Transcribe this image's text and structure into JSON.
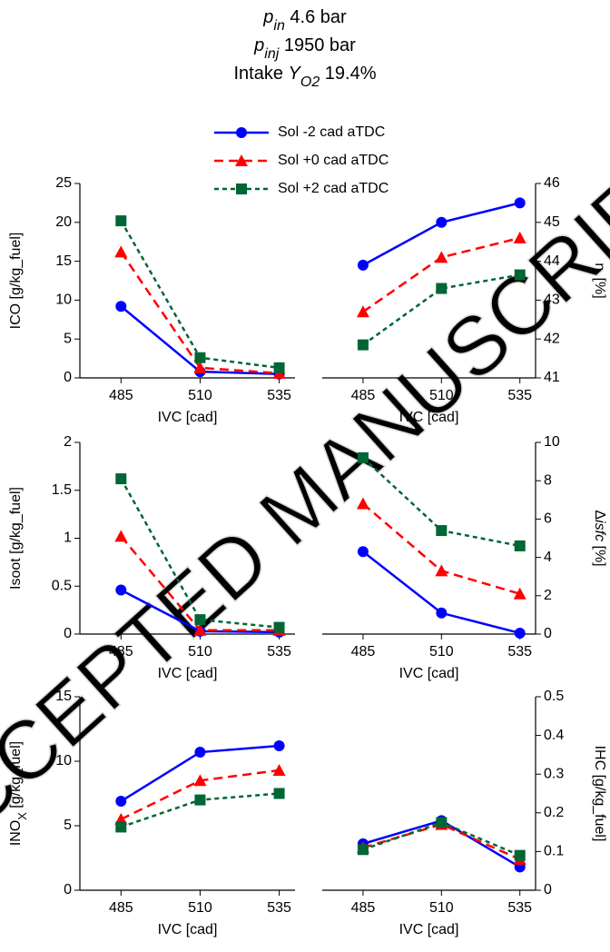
{
  "title_lines": [
    [
      {
        "text": "p",
        "style": "italic"
      },
      {
        "text": "in",
        "style": "italic-sub"
      },
      {
        "text": " 4.6 bar",
        "style": "normal"
      }
    ],
    [
      {
        "text": "p",
        "style": "italic"
      },
      {
        "text": "inj",
        "style": "italic-sub"
      },
      {
        "text": " 1950 bar",
        "style": "normal"
      }
    ],
    [
      {
        "text": "Intake ",
        "style": "normal"
      },
      {
        "text": "Y",
        "style": "italic"
      },
      {
        "text": "O2",
        "style": "italic-sub"
      },
      {
        "text": " 19.4%",
        "style": "normal"
      }
    ]
  ],
  "watermark": "ACCEPTED MANUSCRIPT",
  "chart_data": [
    {
      "type": "line",
      "x_label": "IVC [cad]",
      "y_label": [
        {
          "text": "ICO [g/kg_fuel]",
          "style": "normal"
        }
      ],
      "y_axis_side": "left",
      "x": [
        485,
        510,
        535
      ],
      "xlim": [
        472,
        540
      ],
      "xticks": [
        485,
        510,
        535
      ],
      "ylim": [
        0,
        25
      ],
      "yticks": [
        0,
        5,
        10,
        15,
        20,
        25
      ],
      "series": [
        {
          "name": "Sol -2 cad aTDC",
          "color": "#0000ff",
          "marker": "circle",
          "dash": "solid",
          "values": [
            9.2,
            0.8,
            0.5
          ]
        },
        {
          "name": "Sol +0 cad aTDC",
          "color": "#ff0000",
          "marker": "triangle",
          "dash": "dashed",
          "values": [
            16.2,
            1.3,
            0.6
          ]
        },
        {
          "name": "Sol +2 cad aTDC",
          "color": "#006633",
          "marker": "square",
          "dash": "dotted",
          "values": [
            20.2,
            2.6,
            1.3
          ]
        }
      ]
    },
    {
      "type": "line",
      "x_label": "IVC [cad]",
      "y_label": [
        {
          "text": "η",
          "style": "normal"
        },
        {
          "text": "i",
          "style": "sub"
        },
        {
          "text": " [%]",
          "style": "normal"
        }
      ],
      "y_axis_side": "right",
      "x": [
        485,
        510,
        535
      ],
      "xlim": [
        472,
        540
      ],
      "xticks": [
        485,
        510,
        535
      ],
      "ylim": [
        41,
        46
      ],
      "yticks": [
        41,
        42,
        43,
        44,
        45,
        46
      ],
      "series": [
        {
          "color": "#0000ff",
          "marker": "circle",
          "dash": "solid",
          "values": [
            43.9,
            45.0,
            45.5
          ]
        },
        {
          "color": "#ff0000",
          "marker": "triangle",
          "dash": "dashed",
          "values": [
            42.7,
            44.1,
            44.6
          ]
        },
        {
          "color": "#006633",
          "marker": "square",
          "dash": "dotted",
          "values": [
            41.85,
            43.3,
            43.65
          ]
        }
      ]
    },
    {
      "type": "line",
      "x_label": "IVC [cad]",
      "y_label": [
        {
          "text": "Isoot [g/kg_fuel]",
          "style": "normal"
        }
      ],
      "y_axis_side": "left",
      "x": [
        485,
        510,
        535
      ],
      "xlim": [
        472,
        540
      ],
      "xticks": [
        485,
        510,
        535
      ],
      "ylim": [
        0,
        2
      ],
      "yticks": [
        0,
        0.5,
        1,
        1.5,
        2
      ],
      "series": [
        {
          "color": "#0000ff",
          "marker": "circle",
          "dash": "solid",
          "values": [
            0.46,
            0.03,
            0.02
          ]
        },
        {
          "color": "#ff0000",
          "marker": "triangle",
          "dash": "dashed",
          "values": [
            1.02,
            0.04,
            0.04
          ]
        },
        {
          "color": "#006633",
          "marker": "square",
          "dash": "dotted",
          "values": [
            1.62,
            0.15,
            0.07
          ]
        }
      ]
    },
    {
      "type": "line",
      "x_label": "IVC [cad]",
      "y_label": [
        {
          "text": "Δ",
          "style": "normal"
        },
        {
          "text": "isfc",
          "style": "italic"
        },
        {
          "text": " [%]",
          "style": "normal"
        }
      ],
      "y_axis_side": "right",
      "x": [
        485,
        510,
        535
      ],
      "xlim": [
        472,
        540
      ],
      "xticks": [
        485,
        510,
        535
      ],
      "ylim": [
        0,
        10
      ],
      "yticks": [
        0,
        2,
        4,
        6,
        8,
        10
      ],
      "series": [
        {
          "color": "#0000ff",
          "marker": "circle",
          "dash": "solid",
          "values": [
            4.3,
            1.1,
            0.05
          ]
        },
        {
          "color": "#ff0000",
          "marker": "triangle",
          "dash": "dashed",
          "values": [
            6.8,
            3.3,
            2.1
          ]
        },
        {
          "color": "#006633",
          "marker": "square",
          "dash": "dotted",
          "values": [
            9.2,
            5.4,
            4.6
          ]
        }
      ]
    },
    {
      "type": "line",
      "x_label": "IVC [cad]",
      "y_label": [
        {
          "text": "INO",
          "style": "normal"
        },
        {
          "text": "X",
          "style": "sub"
        },
        {
          "text": " [g/kg_fuel]",
          "style": "normal"
        }
      ],
      "y_axis_side": "left",
      "x": [
        485,
        510,
        535
      ],
      "xlim": [
        472,
        540
      ],
      "xticks": [
        485,
        510,
        535
      ],
      "ylim": [
        0,
        15
      ],
      "yticks": [
        0,
        5,
        10,
        15
      ],
      "series": [
        {
          "color": "#0000ff",
          "marker": "circle",
          "dash": "solid",
          "values": [
            6.9,
            10.7,
            11.2
          ]
        },
        {
          "color": "#ff0000",
          "marker": "triangle",
          "dash": "dashed",
          "values": [
            5.5,
            8.5,
            9.3
          ]
        },
        {
          "color": "#006633",
          "marker": "square",
          "dash": "dotted",
          "values": [
            4.9,
            7.0,
            7.5
          ]
        }
      ]
    },
    {
      "type": "line",
      "x_label": "IVC [cad]",
      "y_label": [
        {
          "text": "IHC [g/kg_fuel]",
          "style": "normal"
        }
      ],
      "y_axis_side": "right",
      "x": [
        485,
        510,
        535
      ],
      "xlim": [
        472,
        540
      ],
      "xticks": [
        485,
        510,
        535
      ],
      "ylim": [
        0,
        0.5
      ],
      "yticks": [
        0,
        0.1,
        0.2,
        0.3,
        0.4,
        0.5
      ],
      "series": [
        {
          "color": "#0000ff",
          "marker": "circle",
          "dash": "solid",
          "values": [
            0.12,
            0.18,
            0.06
          ]
        },
        {
          "color": "#ff0000",
          "marker": "triangle",
          "dash": "dashed",
          "values": [
            0.11,
            0.17,
            0.08
          ]
        },
        {
          "color": "#006633",
          "marker": "square",
          "dash": "dotted",
          "values": [
            0.105,
            0.175,
            0.09
          ]
        }
      ]
    }
  ]
}
